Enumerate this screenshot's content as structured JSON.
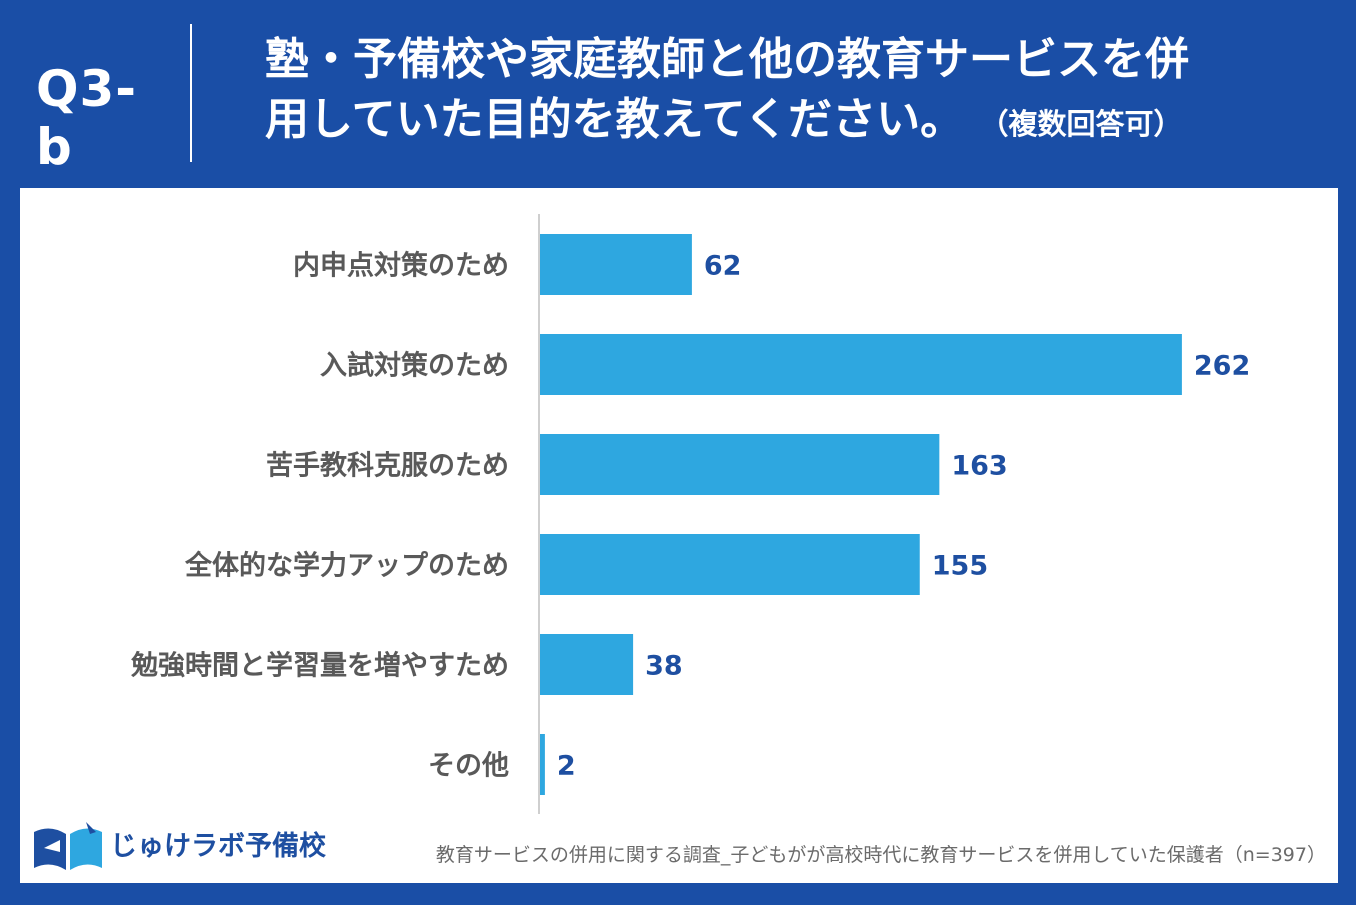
{
  "header": {
    "question_id": "Q3-b",
    "title_line1": "塾・予備校や家庭教師と他の教育サービスを併",
    "title_line2": "用していた目的を教えてください。",
    "title_note": "（複数回答可）"
  },
  "chart_data": {
    "type": "bar",
    "orientation": "horizontal",
    "categories": [
      "内申点対策のため",
      "入試対策のため",
      "苦手教科克服のため",
      "全体的な学力アップのため",
      "勉強時間と学習量を増やすため",
      "その他"
    ],
    "values": [
      62,
      262,
      163,
      155,
      38,
      2
    ],
    "bar_color": "#2ea7e0",
    "value_label_color": "#1e4fa1",
    "grid": false
  },
  "footer": {
    "logo_text": "じゅけラボ予備校",
    "source": "教育サービスの併用に関する調査_子どもがが高校時代に教育サービスを併用していた保護者（n=397）"
  },
  "colors": {
    "background": "#1a4ea6",
    "panel": "#ffffff"
  }
}
